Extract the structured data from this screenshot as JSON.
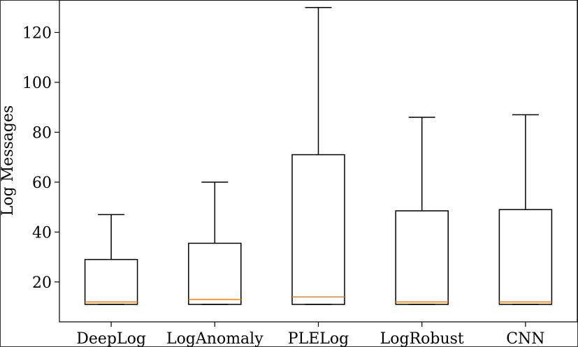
{
  "chart_data": {
    "type": "box",
    "ylabel": "Log Messages",
    "xlabel": "",
    "ylim": [
      4,
      133
    ],
    "yticks": [
      20,
      40,
      60,
      80,
      100,
      120
    ],
    "categories": [
      "DeepLog",
      "LogAnomaly",
      "PLELog",
      "LogRobust",
      "CNN"
    ],
    "boxes": [
      {
        "name": "DeepLog",
        "whisker_low": 11,
        "q1": 11,
        "median": 12,
        "q3": 29,
        "whisker_high": 47
      },
      {
        "name": "LogAnomaly",
        "whisker_low": 11,
        "q1": 11,
        "median": 13,
        "q3": 35.5,
        "whisker_high": 60
      },
      {
        "name": "PLELog",
        "whisker_low": 11,
        "q1": 11,
        "median": 14,
        "q3": 71,
        "whisker_high": 130
      },
      {
        "name": "LogRobust",
        "whisker_low": 11,
        "q1": 11,
        "median": 12,
        "q3": 48.5,
        "whisker_high": 86
      },
      {
        "name": "CNN",
        "whisker_low": 11,
        "q1": 11,
        "median": 12,
        "q3": 49,
        "whisker_high": 87
      }
    ],
    "colors": {
      "box": "#000000",
      "median": "#ff7f0e"
    },
    "grid": false
  }
}
